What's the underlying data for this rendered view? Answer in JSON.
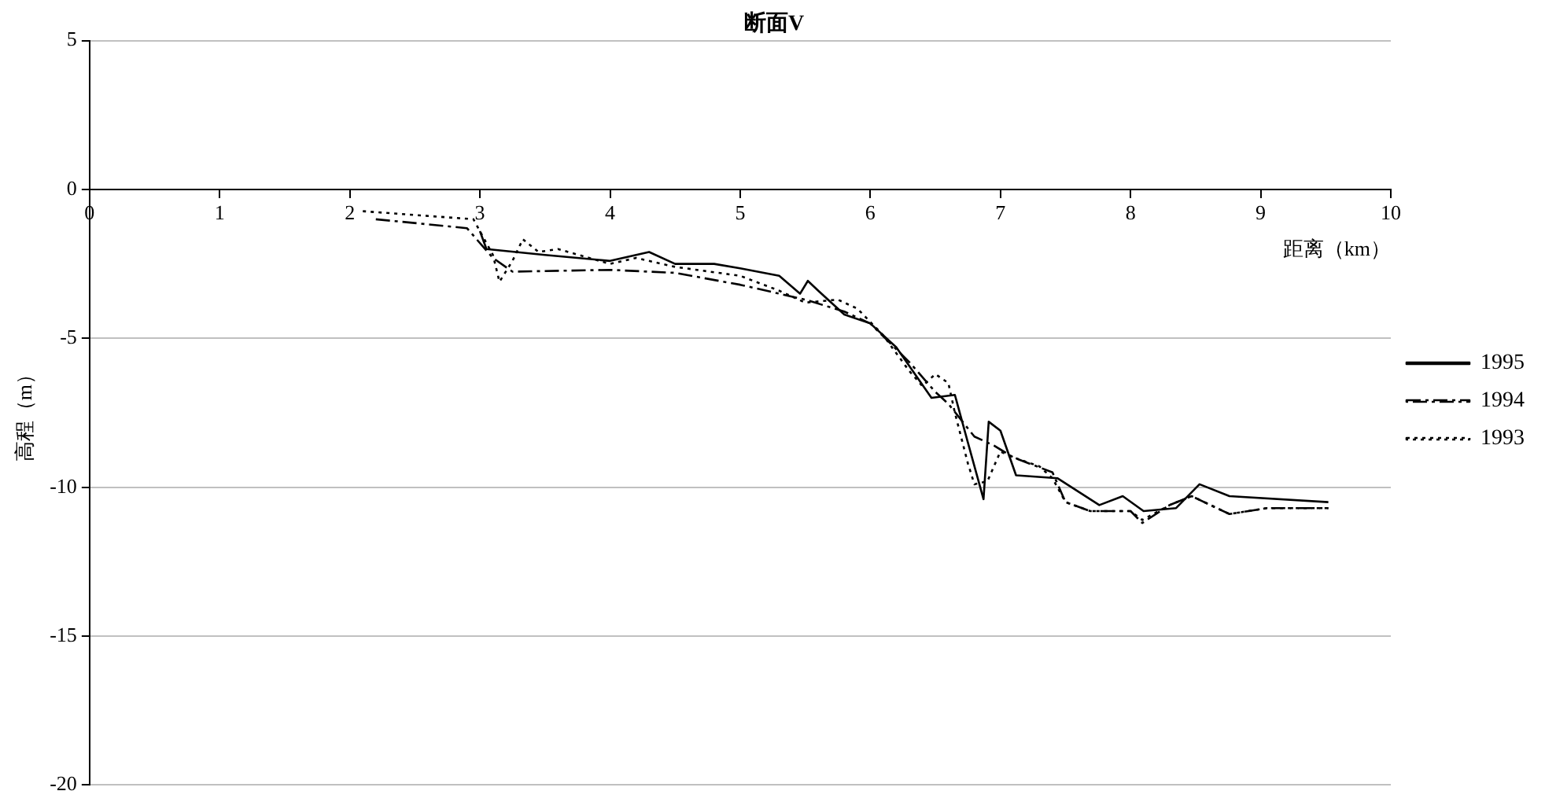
{
  "chart_data": {
    "type": "line",
    "title": "断面V",
    "xlabel": "距离（km）",
    "ylabel": "高程（m）",
    "xlim": [
      0,
      10
    ],
    "xticks": [
      0,
      1,
      2,
      3,
      4,
      5,
      6,
      7,
      8,
      9,
      10
    ],
    "ylim": [
      -20,
      5
    ],
    "yticks": [
      -20,
      -15,
      -10,
      -5,
      0,
      5
    ],
    "grid": "y",
    "legend": "right",
    "marker": "none",
    "series": [
      {
        "name": "1995",
        "color": "#000000",
        "line_style": "solid",
        "x": [
          3.0,
          3.05,
          3.5,
          4.0,
          4.3,
          4.5,
          4.8,
          5.0,
          5.3,
          5.46,
          5.52,
          5.6,
          5.8,
          6.0,
          6.2,
          6.47,
          6.65,
          6.75,
          6.87,
          6.91,
          7.0,
          7.12,
          7.44,
          7.76,
          7.94,
          8.1,
          8.35,
          8.53,
          8.76,
          9.52
        ],
        "values": [
          -1.4,
          -2.0,
          -2.2,
          -2.4,
          -2.1,
          -2.5,
          -2.5,
          -2.65,
          -2.9,
          -3.5,
          -3.07,
          -3.4,
          -4.2,
          -4.5,
          -5.3,
          -7.0,
          -6.9,
          -8.5,
          -10.4,
          -7.8,
          -8.1,
          -9.6,
          -9.7,
          -10.6,
          -10.3,
          -10.8,
          -10.7,
          -9.9,
          -10.3,
          -10.5
        ]
      },
      {
        "name": "1994",
        "color": "#000000",
        "line_style": "dashdot",
        "x": [
          2.2,
          2.9,
          3.1,
          3.25,
          4.0,
          4.5,
          5.0,
          5.5,
          5.8,
          6.0,
          6.3,
          6.5,
          6.6,
          6.8,
          6.95,
          7.1,
          7.4,
          7.5,
          7.69,
          8.0,
          8.09,
          8.3,
          8.47,
          8.76,
          9.05,
          9.52
        ],
        "values": [
          -1.0,
          -1.3,
          -2.3,
          -2.76,
          -2.7,
          -2.8,
          -3.2,
          -3.7,
          -4.1,
          -4.5,
          -5.8,
          -6.8,
          -7.2,
          -8.3,
          -8.6,
          -9.0,
          -9.5,
          -10.5,
          -10.8,
          -10.8,
          -11.2,
          -10.6,
          -10.3,
          -10.9,
          -10.7,
          -10.7
        ]
      },
      {
        "name": "1993",
        "color": "#000000",
        "line_style": "dotted",
        "x": [
          2.1,
          2.95,
          3.1,
          3.15,
          3.25,
          3.33,
          3.45,
          3.6,
          4.0,
          4.2,
          4.5,
          5.0,
          5.3,
          5.5,
          5.75,
          5.9,
          6.1,
          6.3,
          6.4,
          6.5,
          6.6,
          6.65,
          6.75,
          6.8,
          6.9,
          7.0,
          7.1,
          7.3,
          7.4,
          7.5,
          7.69,
          8.0,
          8.09,
          8.3,
          8.47,
          8.76,
          9.05,
          9.52
        ],
        "values": [
          -0.73,
          -1.0,
          -2.2,
          -3.1,
          -2.4,
          -1.67,
          -2.1,
          -2.0,
          -2.5,
          -2.3,
          -2.6,
          -2.9,
          -3.4,
          -3.8,
          -3.7,
          -4.0,
          -4.9,
          -6.1,
          -6.6,
          -6.2,
          -6.5,
          -7.5,
          -9.2,
          -9.9,
          -9.8,
          -8.8,
          -9.0,
          -9.3,
          -9.7,
          -10.5,
          -10.8,
          -10.8,
          -11.1,
          -10.6,
          -10.3,
          -10.9,
          -10.7,
          -10.7
        ]
      }
    ]
  }
}
